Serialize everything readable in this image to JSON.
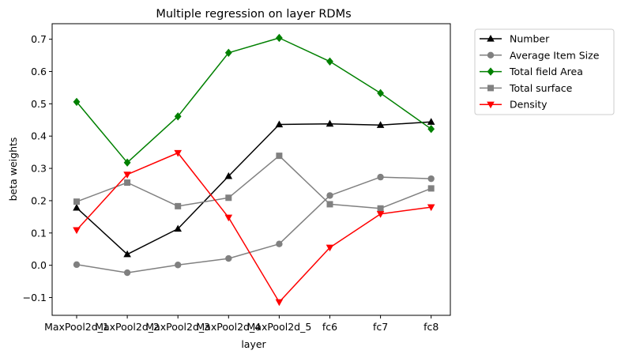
{
  "chart_data": {
    "type": "line",
    "title": "Multiple regression on layer RDMs",
    "xlabel": "layer",
    "ylabel": "beta weights",
    "categories": [
      "MaxPool2d_1",
      "MaxPool2d_2",
      "MaxPool2d_3",
      "MaxPool2d_4",
      "MaxPool2d_5",
      "fc6",
      "fc7",
      "fc8"
    ],
    "ylim": [
      -0.155,
      0.748
    ],
    "yticks": [
      -0.1,
      0.0,
      0.1,
      0.2,
      0.3,
      0.4,
      0.5,
      0.6,
      0.7
    ],
    "ytick_labels": [
      "−0.1",
      "0.0",
      "0.1",
      "0.2",
      "0.3",
      "0.4",
      "0.5",
      "0.6",
      "0.7"
    ],
    "grid": false,
    "legend_position": "outside upper-right",
    "series": [
      {
        "name": "Number",
        "color": "#000000",
        "marker": "triangle-up",
        "values": [
          0.178,
          0.034,
          0.113,
          0.276,
          0.436,
          0.438,
          0.434,
          0.444
        ]
      },
      {
        "name": "Average Item Size",
        "color": "#808080",
        "marker": "circle",
        "values": [
          0.002,
          -0.023,
          0.001,
          0.021,
          0.066,
          0.216,
          0.273,
          0.268
        ]
      },
      {
        "name": "Total field Area",
        "color": "#008000",
        "marker": "diamond",
        "values": [
          0.506,
          0.318,
          0.461,
          0.658,
          0.704,
          0.631,
          0.533,
          0.422
        ]
      },
      {
        "name": "Total surface",
        "color": "#808080",
        "marker": "square",
        "values": [
          0.197,
          0.256,
          0.183,
          0.209,
          0.339,
          0.189,
          0.176,
          0.238
        ]
      },
      {
        "name": "Density",
        "color": "#ff0000",
        "marker": "triangle-down",
        "values": [
          0.109,
          0.281,
          0.348,
          0.148,
          -0.114,
          0.055,
          0.159,
          0.18
        ]
      }
    ]
  }
}
